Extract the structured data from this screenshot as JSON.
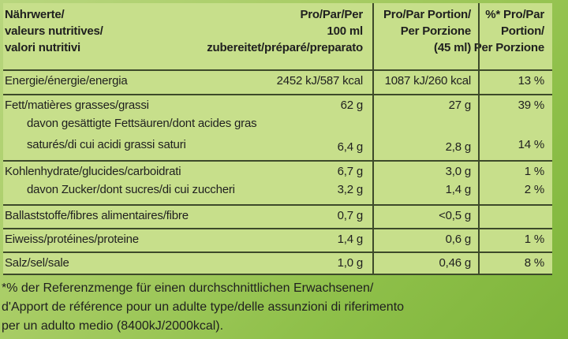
{
  "header": {
    "col0": [
      "Nährwerte/",
      "valeurs nutritives/",
      "valori nutritivi"
    ],
    "col1": [
      "Pro/Par/Per",
      "100 ml",
      "zubereitet/préparé/preparato"
    ],
    "col2": [
      "Pro/Par Portion/",
      "Per Porzione",
      "(45 ml)"
    ],
    "col3": [
      "%* Pro/Par",
      "Portion/",
      "Per Porzione"
    ]
  },
  "rows": {
    "energy": {
      "label": "Energie/énergie/energia",
      "per100": "2452 kJ/587 kcal",
      "portion": "1087 kJ/260 kcal",
      "pct": "13 %"
    },
    "fat": {
      "label": "Fett/matières grasses/grassi",
      "per100": "62 g",
      "portion": "27 g",
      "pct": "39 %"
    },
    "sat": {
      "label1": "davon gesättigte Fettsäuren/dont acides gras",
      "label2": "saturés/di cui acidi grassi saturi",
      "per100": "6,4 g",
      "portion": "2,8 g",
      "pct": "14 %"
    },
    "carb": {
      "label": "Kohlenhydrate/glucides/carboidrati",
      "per100": "6,7 g",
      "portion": "3,0 g",
      "pct": "1 %"
    },
    "sugar": {
      "label": "davon Zucker/dont sucres/di cui zuccheri",
      "per100": "3,2 g",
      "portion": "1,4 g",
      "pct": "2 %"
    },
    "fibre": {
      "label": "Ballaststoffe/fibres alimentaires/fibre",
      "per100": "0,7 g",
      "portion": "<0,5 g",
      "pct": ""
    },
    "protein": {
      "label": "Eiweiss/protéines/proteine",
      "per100": "1,4 g",
      "portion": "0,6 g",
      "pct": "1 %"
    },
    "salt": {
      "label": "Salz/sel/sale",
      "per100": "1,0 g",
      "portion": "0,46 g",
      "pct": "8 %"
    }
  },
  "footnote": [
    "*% der Referenzmenge für einen durchschnittlichen Erwachsenen/",
    "d'Apport de référence pour un adulte type/delle assunzioni di riferimento",
    "per un adulto medio (8400kJ/2000kcal)."
  ]
}
